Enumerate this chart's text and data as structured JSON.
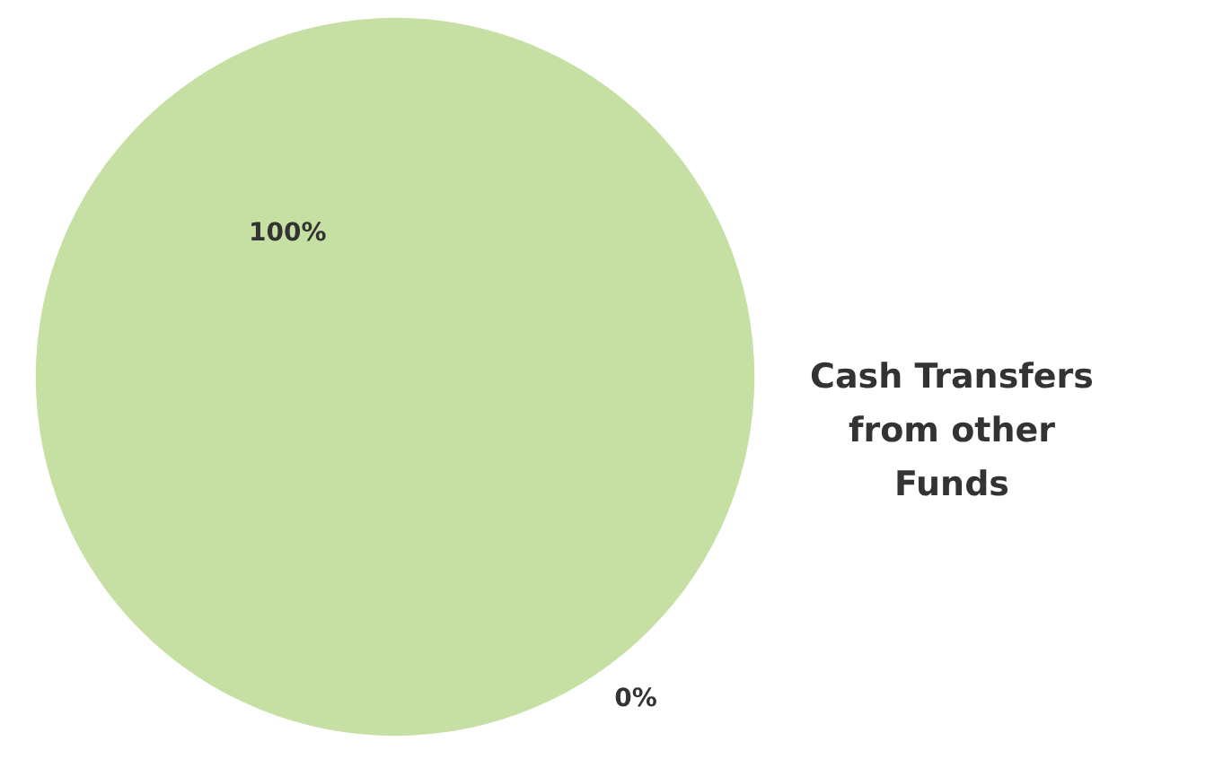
{
  "chart_data": {
    "type": "pie",
    "title": "Cash Transfers from other Funds",
    "categories": [
      null,
      null
    ],
    "values": [
      100,
      0
    ],
    "colors": [
      "#c6e0a4",
      "#e6a867"
    ],
    "value_labels": [
      "100%",
      "0%"
    ]
  }
}
